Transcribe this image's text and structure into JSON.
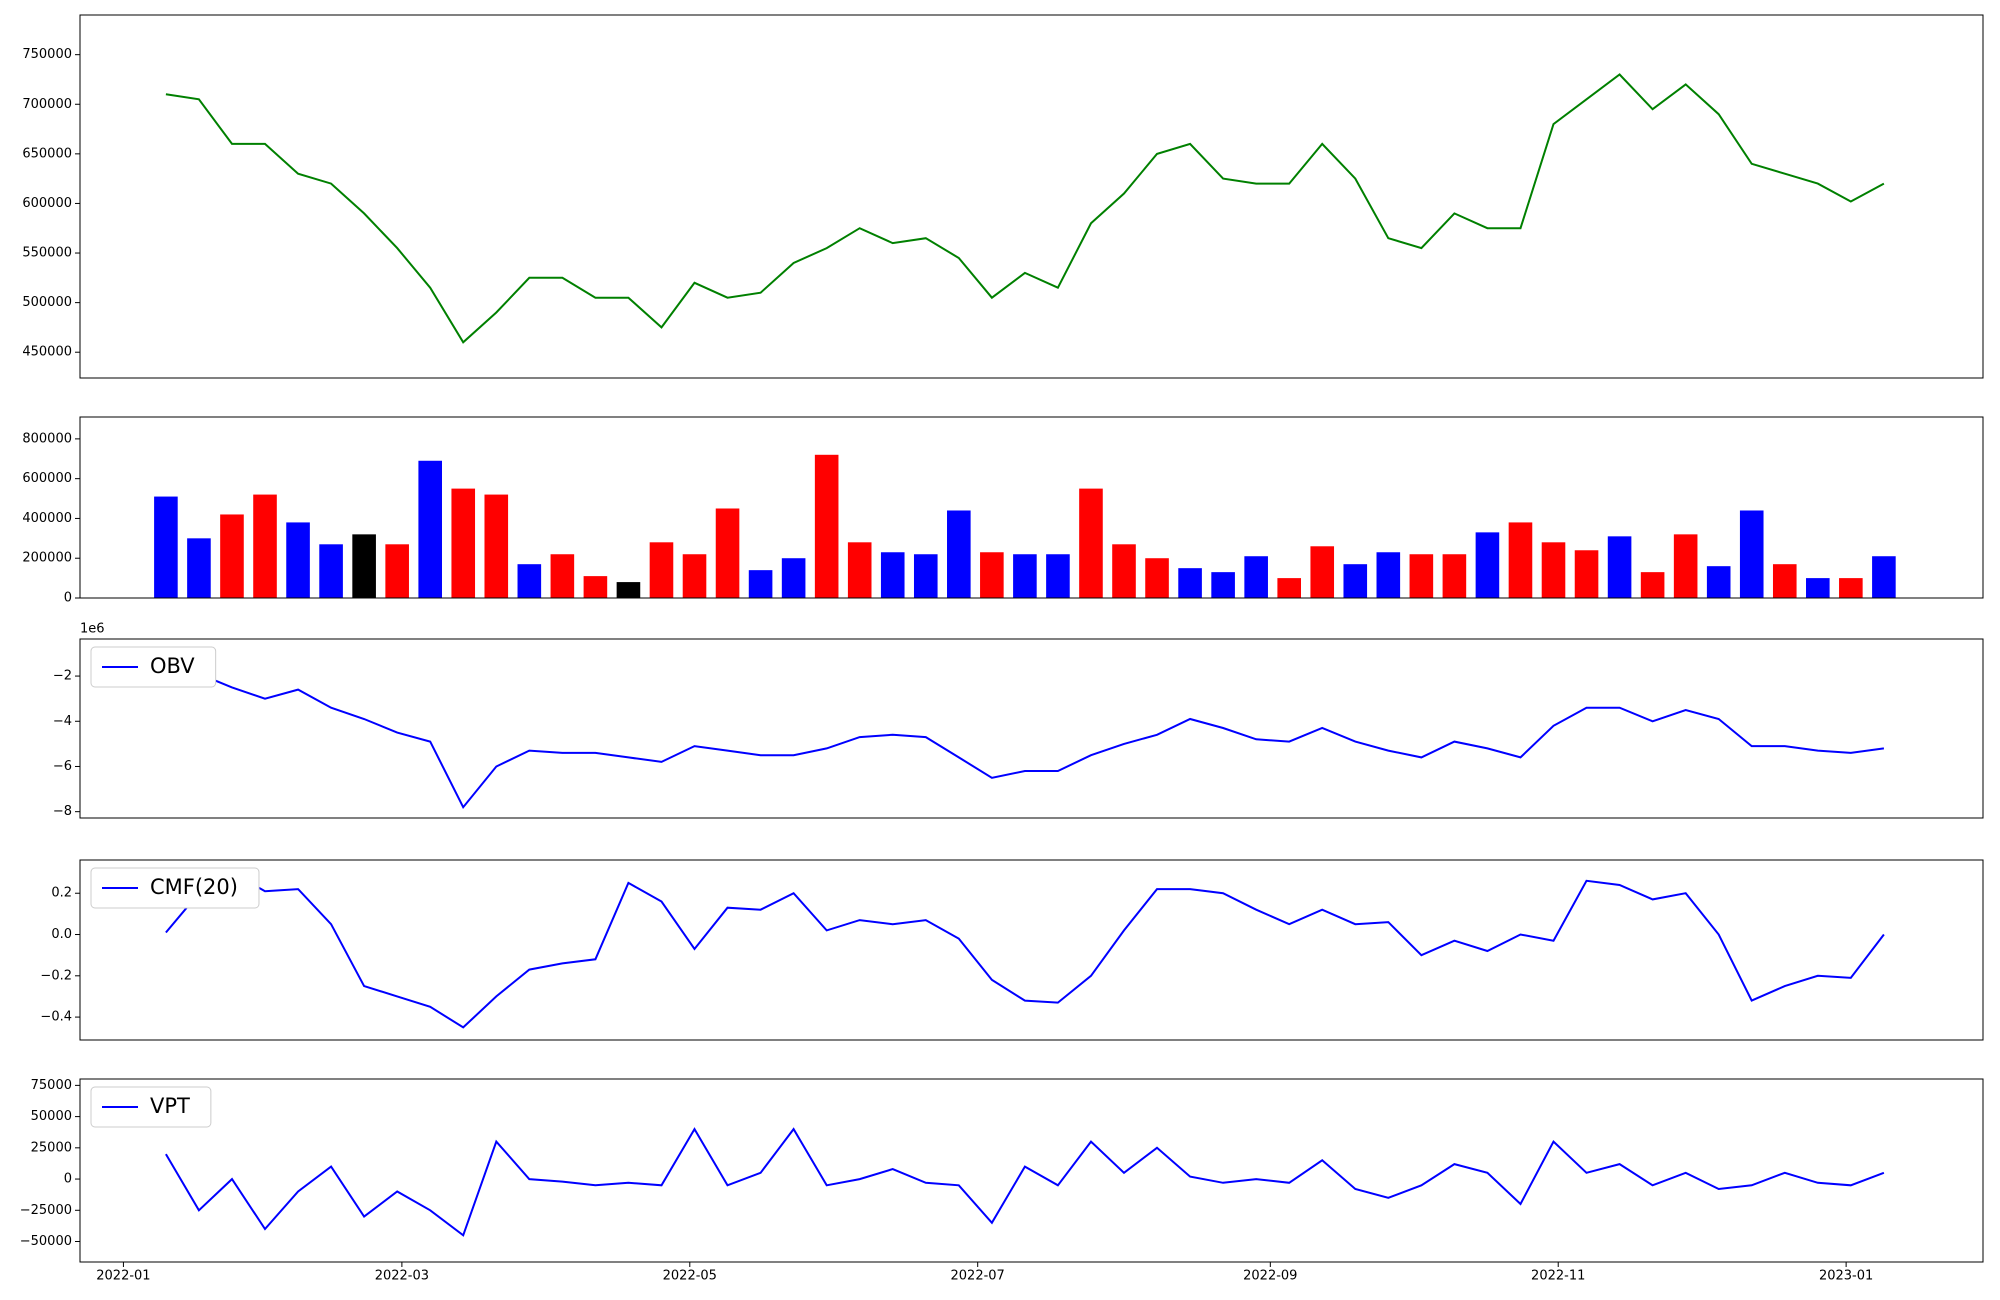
{
  "chart_data": [
    {
      "type": "line",
      "color": "green",
      "xlim": [
        -9.2,
        394
      ],
      "ylim": [
        424000,
        790000
      ],
      "yticks": [
        450000,
        500000,
        550000,
        600000,
        650000,
        700000,
        750000
      ],
      "x": [
        9,
        16,
        23,
        30,
        37,
        44,
        51,
        58,
        65,
        72,
        79,
        86,
        93,
        100,
        107,
        114,
        121,
        128,
        135,
        142,
        149,
        156,
        163,
        170,
        177,
        184,
        191,
        198,
        205,
        212,
        219,
        226,
        233,
        240,
        247,
        254,
        261,
        268,
        275,
        282,
        289,
        296,
        303,
        310,
        317,
        324,
        331,
        338,
        345,
        352,
        359,
        366,
        373
      ],
      "values": [
        710000,
        705000,
        660000,
        660000,
        630000,
        620000,
        590000,
        555000,
        515000,
        460000,
        490000,
        525000,
        525000,
        505000,
        505000,
        475000,
        520000,
        505000,
        510000,
        540000,
        555000,
        575000,
        560000,
        565000,
        545000,
        505000,
        530000,
        515000,
        580000,
        610000,
        650000,
        660000,
        625000,
        620000,
        620000,
        660000,
        625000,
        565000,
        555000,
        590000,
        575000,
        575000,
        680000,
        705000,
        730000,
        695000,
        720000,
        690000,
        640000,
        630000,
        620000,
        602000,
        620000
      ]
    },
    {
      "type": "bar",
      "xlim": [
        -9.2,
        394
      ],
      "ylim": [
        0,
        910000
      ],
      "yticks": [
        0,
        200000,
        400000,
        600000,
        800000
      ],
      "x": [
        9,
        16,
        23,
        30,
        37,
        44,
        51,
        58,
        65,
        72,
        79,
        86,
        93,
        100,
        107,
        114,
        121,
        128,
        135,
        142,
        149,
        156,
        163,
        170,
        177,
        184,
        191,
        198,
        205,
        212,
        219,
        226,
        233,
        240,
        247,
        254,
        261,
        268,
        275,
        282,
        289,
        296,
        303,
        310,
        317,
        324,
        331,
        338,
        345,
        352,
        359,
        366,
        373
      ],
      "values": [
        510000,
        300000,
        420000,
        520000,
        380000,
        270000,
        320000,
        270000,
        690000,
        550000,
        520000,
        170000,
        220000,
        110000,
        80000,
        280000,
        220000,
        450000,
        140000,
        200000,
        720000,
        280000,
        230000,
        220000,
        440000,
        230000,
        220000,
        220000,
        550000,
        270000,
        200000,
        150000,
        130000,
        210000,
        100000,
        260000,
        170000,
        230000,
        220000,
        220000,
        330000,
        380000,
        280000,
        240000,
        310000,
        130000,
        320000,
        160000,
        440000,
        170000,
        100000,
        100000,
        210000
      ],
      "colors": [
        "blue",
        "blue",
        "red",
        "red",
        "blue",
        "blue",
        "black",
        "red",
        "blue",
        "red",
        "red",
        "blue",
        "red",
        "red",
        "black",
        "red",
        "red",
        "red",
        "blue",
        "blue",
        "red",
        "red",
        "blue",
        "blue",
        "blue",
        "red",
        "blue",
        "blue",
        "red",
        "red",
        "red",
        "blue",
        "blue",
        "blue",
        "red",
        "red",
        "blue",
        "blue",
        "red",
        "red",
        "blue",
        "red",
        "red",
        "red",
        "blue",
        "red",
        "red",
        "blue",
        "blue",
        "red",
        "blue",
        "red",
        "blue"
      ]
    },
    {
      "type": "line",
      "xlim": [
        -9.2,
        394
      ],
      "ylim": [
        -8280000,
        -360000
      ],
      "y_offset_label": "1e6",
      "legend": "upper left",
      "yticks": [
        {
          "value": -8000000,
          "label": "−8"
        },
        {
          "value": -6000000,
          "label": "−6"
        },
        {
          "value": -4000000,
          "label": "−4"
        },
        {
          "value": -2000000,
          "label": "−2"
        }
      ],
      "x": [
        9,
        16,
        23,
        30,
        37,
        44,
        51,
        58,
        65,
        72,
        79,
        86,
        93,
        100,
        107,
        114,
        121,
        128,
        135,
        142,
        149,
        156,
        163,
        170,
        177,
        184,
        191,
        198,
        205,
        212,
        219,
        226,
        233,
        240,
        247,
        254,
        261,
        268,
        275,
        282,
        289,
        296,
        303,
        310,
        317,
        324,
        331,
        338,
        345,
        352,
        359,
        366,
        373
      ],
      "series": [
        {
          "name": "OBV",
          "color": "blue",
          "values": [
            -1200000,
            -1900000,
            -2500000,
            -3000000,
            -2600000,
            -3400000,
            -3900000,
            -4500000,
            -4900000,
            -7800000,
            -6000000,
            -5300000,
            -5400000,
            -5400000,
            -5600000,
            -5800000,
            -5100000,
            -5300000,
            -5500000,
            -5500000,
            -5200000,
            -4700000,
            -4600000,
            -4700000,
            -5600000,
            -6500000,
            -6200000,
            -6200000,
            -5500000,
            -5000000,
            -4600000,
            -3900000,
            -4300000,
            -4800000,
            -4900000,
            -4300000,
            -4900000,
            -5300000,
            -5600000,
            -4900000,
            -5200000,
            -5600000,
            -4200000,
            -3400000,
            -3400000,
            -4000000,
            -3500000,
            -3900000,
            -5100000,
            -5100000,
            -5300000,
            -5400000,
            -5200000
          ]
        }
      ]
    },
    {
      "type": "line",
      "xlim": [
        -9.2,
        394
      ],
      "ylim": [
        -0.511,
        0.361
      ],
      "legend": "upper left",
      "yticks": [
        {
          "value": -0.4,
          "label": "−0.4"
        },
        {
          "value": -0.2,
          "label": "−0.2"
        },
        {
          "value": 0,
          "label": "0.0"
        },
        0.2
      ],
      "x": [
        9,
        16,
        23,
        30,
        37,
        44,
        51,
        58,
        65,
        72,
        79,
        86,
        93,
        100,
        107,
        114,
        121,
        128,
        135,
        142,
        149,
        156,
        163,
        170,
        177,
        184,
        191,
        198,
        205,
        212,
        219,
        226,
        233,
        240,
        247,
        254,
        261,
        268,
        275,
        282,
        289,
        296,
        303,
        310,
        317,
        324,
        331,
        338,
        345,
        352,
        359,
        366,
        373
      ],
      "series": [
        {
          "name": "CMF(20)",
          "color": "blue",
          "values": [
            0.01,
            0.2,
            0.3,
            0.21,
            0.22,
            0.05,
            -0.25,
            -0.3,
            -0.35,
            -0.45,
            -0.3,
            -0.17,
            -0.14,
            -0.12,
            0.25,
            0.16,
            -0.07,
            0.13,
            0.12,
            0.2,
            0.02,
            0.07,
            0.05,
            0.07,
            -0.02,
            -0.22,
            -0.32,
            -0.33,
            -0.2,
            0.02,
            0.22,
            0.22,
            0.2,
            0.12,
            0.05,
            0.12,
            0.05,
            0.06,
            -0.1,
            -0.03,
            -0.08,
            0.0,
            -0.03,
            0.26,
            0.24,
            0.17,
            0.2,
            0.0,
            -0.32,
            -0.25,
            -0.2,
            -0.21,
            0.0
          ]
        }
      ]
    },
    {
      "type": "line",
      "xlim": [
        -9.2,
        394
      ],
      "ylim": [
        -66400,
        80100
      ],
      "legend": "upper left",
      "yticks": [
        {
          "value": -50000,
          "label": "−50000"
        },
        {
          "value": -25000,
          "label": "−25000"
        },
        0,
        25000,
        50000,
        75000
      ],
      "xticks": [
        {
          "value": 0,
          "label": "2022-01"
        },
        {
          "value": 59,
          "label": "2022-03"
        },
        {
          "value": 120,
          "label": "2022-05"
        },
        {
          "value": 181,
          "label": "2022-07"
        },
        {
          "value": 243,
          "label": "2022-09"
        },
        {
          "value": 304,
          "label": "2022-11"
        },
        {
          "value": 365,
          "label": "2023-01"
        }
      ],
      "x": [
        9,
        16,
        23,
        30,
        37,
        44,
        51,
        58,
        65,
        72,
        79,
        86,
        93,
        100,
        107,
        114,
        121,
        128,
        135,
        142,
        149,
        156,
        163,
        170,
        177,
        184,
        191,
        198,
        205,
        212,
        219,
        226,
        233,
        240,
        247,
        254,
        261,
        268,
        275,
        282,
        289,
        296,
        303,
        310,
        317,
        324,
        331,
        338,
        345,
        352,
        359,
        366,
        373
      ],
      "series": [
        {
          "name": "VPT",
          "color": "blue",
          "values": [
            20000,
            -25000,
            0,
            -40000,
            -10000,
            10000,
            -30000,
            -10000,
            -25000,
            -45000,
            30000,
            0,
            -2000,
            -5000,
            -3000,
            -5000,
            40000,
            -5000,
            5000,
            40000,
            -5000,
            0,
            8000,
            -3000,
            -5000,
            -35000,
            10000,
            -5000,
            30000,
            5000,
            25000,
            2000,
            -3000,
            0,
            -3000,
            15000,
            -8000,
            -15000,
            -5000,
            12000,
            5000,
            -20000,
            30000,
            5000,
            12000,
            -5000,
            5000,
            -8000,
            -5000,
            5000,
            -3000,
            -5000,
            5000
          ]
        }
      ]
    }
  ]
}
